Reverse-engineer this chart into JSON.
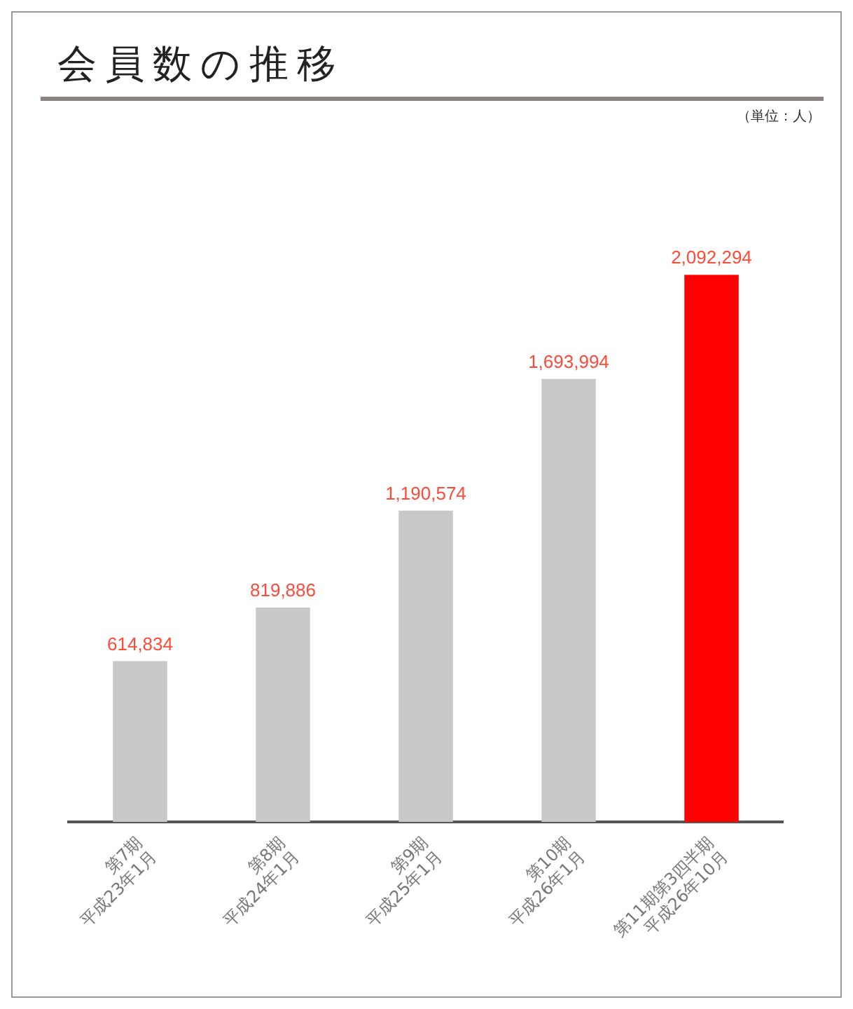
{
  "chart_data": {
    "type": "bar",
    "title": "会員数の推移",
    "annotations": [
      "（単位：人）"
    ],
    "categories": [
      "第7期\n平成23年1月",
      "第8期\n平成24年1月",
      "第9期\n平成25年1月",
      "第10期\n平成26年1月",
      "第11期第3四半期\n平成26年10月"
    ],
    "values": [
      614834,
      819886,
      1190574,
      1693994,
      2092294
    ],
    "colors": [
      "#c8c8c8",
      "#c8c8c8",
      "#c8c8c8",
      "#c8c8c8",
      "#ff0000"
    ],
    "value_labels": [
      "614,834",
      "819,886",
      "1,190,574",
      "1,693,994",
      "2,092,294"
    ],
    "grid": false,
    "legend": false
  }
}
